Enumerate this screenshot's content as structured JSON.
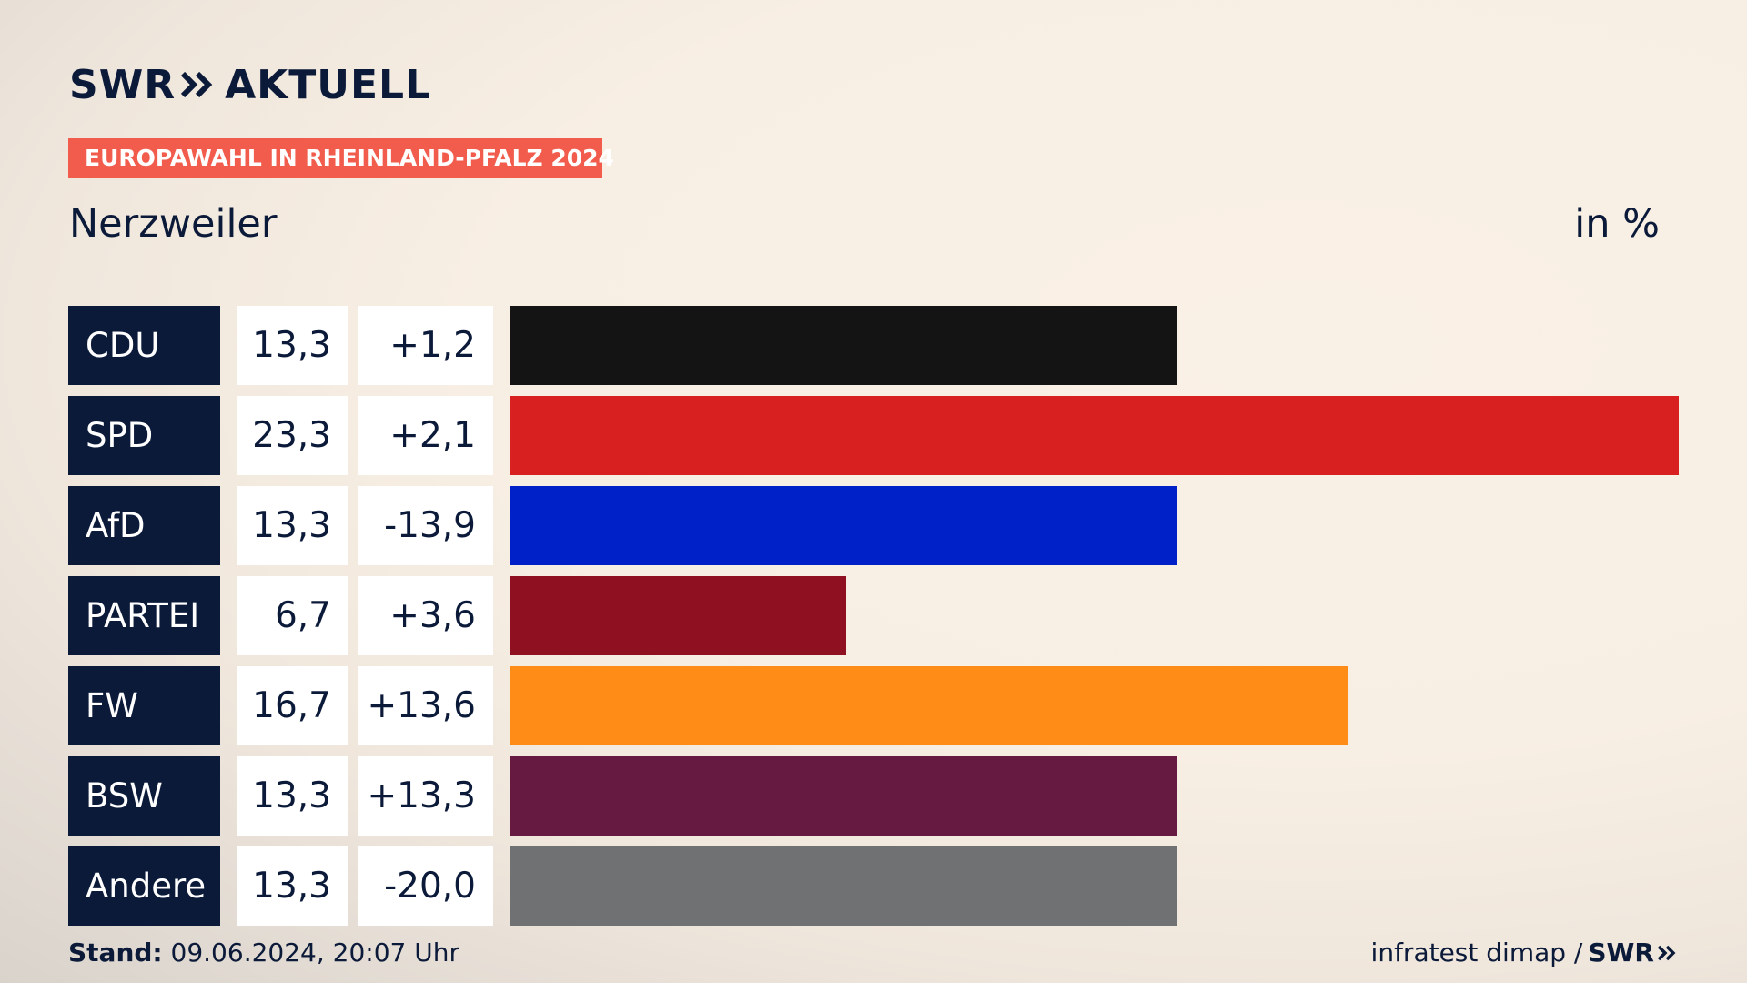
{
  "brand": {
    "logo_swr": "SWR",
    "logo_aktuell": "AKTUELL"
  },
  "tag": "EUROPAWAHL IN RHEINLAND-PFALZ 2024",
  "place": "Nerzweiler",
  "unit": "in %",
  "chart_data": {
    "type": "bar",
    "orientation": "horizontal",
    "categories": [
      "CDU",
      "SPD",
      "AfD",
      "PARTEI",
      "FW",
      "BSW",
      "Andere"
    ],
    "values": [
      13.3,
      23.3,
      13.3,
      6.7,
      16.7,
      13.3,
      13.3
    ],
    "value_labels": [
      "13,3",
      "23,3",
      "13,3",
      "6,7",
      "16,7",
      "13,3",
      "13,3"
    ],
    "diff_labels": [
      "+1,2",
      "+2,1",
      "-13,9",
      "+3,6",
      "+13,6",
      "+13,3",
      "-20,0"
    ],
    "colors": [
      "#141414",
      "#d7201f",
      "#0021c8",
      "#8f1020",
      "#ff8c17",
      "#671a41",
      "#707173"
    ],
    "xlim": [
      0,
      23.3
    ]
  },
  "footer": {
    "stand_label": "Stand:",
    "stand_value": "09.06.2024, 20:07 Uhr",
    "source": "infratest dimap /",
    "source_logo": "SWR"
  }
}
